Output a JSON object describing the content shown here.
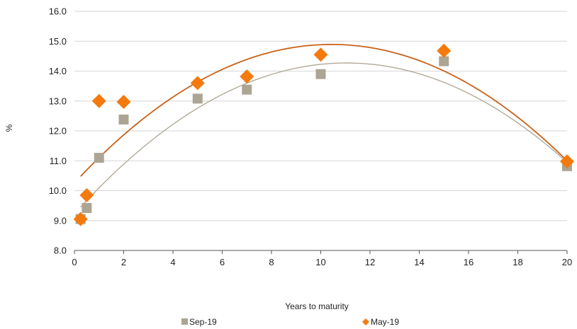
{
  "chart_data": {
    "type": "scatter",
    "xlabel": "Years to maturity",
    "ylabel": "%",
    "xlim": [
      0,
      20
    ],
    "ylim": [
      8.0,
      16.0
    ],
    "x_ticks": [
      "0",
      "2",
      "4",
      "6",
      "8",
      "10",
      "12",
      "14",
      "16",
      "18",
      "20"
    ],
    "y_ticks": [
      "8.0",
      "9.0",
      "10.0",
      "11.0",
      "12.0",
      "13.0",
      "14.0",
      "15.0",
      "16.0"
    ],
    "grid": "horizontal",
    "legend_position": "bottom",
    "series": [
      {
        "name": "Sep-19",
        "marker": "square",
        "color": "#aca594",
        "trend_color": "#b2aa98",
        "points": [
          [
            0.25,
            9.05
          ],
          [
            0.5,
            9.42
          ],
          [
            1,
            11.1
          ],
          [
            2,
            12.38
          ],
          [
            5,
            13.08
          ],
          [
            7,
            13.38
          ],
          [
            10,
            13.9
          ],
          [
            15,
            14.33
          ],
          [
            20,
            10.82
          ]
        ],
        "trend": [
          [
            0.25,
            9.45
          ],
          [
            20,
            10.95
          ]
        ]
      },
      {
        "name": "May-19",
        "marker": "diamond",
        "color": "#f47a0e",
        "trend_color": "#c8621a",
        "points": [
          [
            0.25,
            9.05
          ],
          [
            0.5,
            9.85
          ],
          [
            1,
            13.0
          ],
          [
            2,
            12.97
          ],
          [
            5,
            13.6
          ],
          [
            7,
            13.82
          ],
          [
            10,
            14.55
          ],
          [
            15,
            14.68
          ],
          [
            20,
            10.98
          ]
        ],
        "trend": [
          [
            0.25,
            10.48
          ],
          [
            20,
            11.0
          ]
        ]
      }
    ]
  }
}
